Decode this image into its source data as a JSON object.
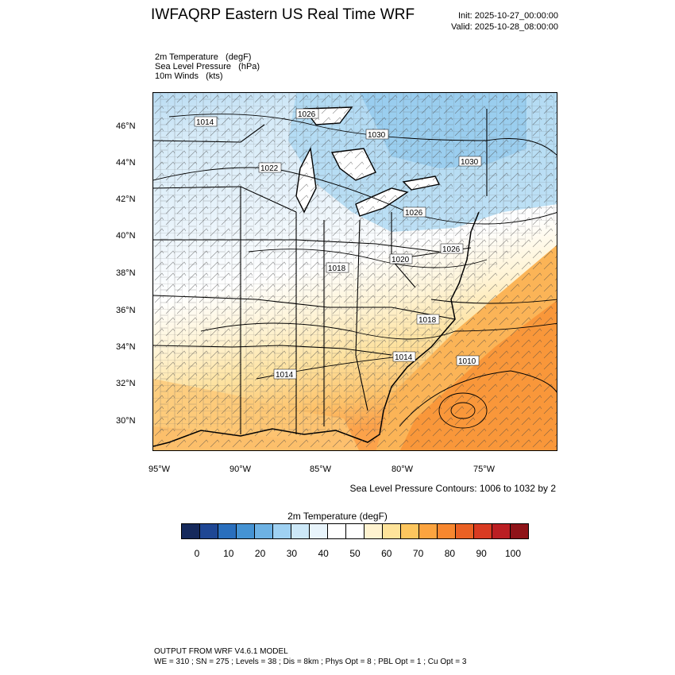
{
  "title": "IWFAQRP Eastern US Real Time WRF",
  "init": "Init: 2025-10-27_00:00:00",
  "valid": "Valid: 2025-10-28_08:00:00",
  "fields": [
    "2m Temperature   (degF)",
    "Sea Level Pressure   (hPa)",
    "10m Winds   (kts)"
  ],
  "lat_labels": [
    "46°N",
    "44°N",
    "42°N",
    "40°N",
    "38°N",
    "36°N",
    "34°N",
    "32°N",
    "30°N"
  ],
  "lon_labels": [
    "95°W",
    "90°W",
    "85°W",
    "80°W",
    "75°W"
  ],
  "pressure_labels": [
    "1014",
    "1026",
    "1030",
    "1022",
    "1030",
    "1026",
    "1026",
    "1020",
    "1018",
    "1018",
    "1014",
    "1010",
    "1014"
  ],
  "contour_note": "Sea Level Pressure Contours: 1006 to 1032 by 2",
  "colorbar": {
    "title": "2m Temperature  (degF)",
    "labels": [
      "0",
      "10",
      "20",
      "30",
      "40",
      "50",
      "60",
      "70",
      "80",
      "90",
      "100"
    ],
    "colors": [
      "#162a5c",
      "#1f4794",
      "#2a6fbd",
      "#4593d3",
      "#6db2e4",
      "#9fd1f2",
      "#cce8f8",
      "#e8f4fb",
      "#ffffff",
      "#ffffff",
      "#fff3d0",
      "#fee39a",
      "#fdc65e",
      "#fca43f",
      "#f7872f",
      "#ea6124",
      "#d93b22",
      "#bb1f23",
      "#8f1419"
    ]
  },
  "footer": {
    "line1": "OUTPUT FROM WRF V4.6.1 MODEL",
    "line2": "WE = 310 ; SN = 275 ; Levels = 38 ; Dis = 8km ; Phys Opt = 8 ; PBL Opt = 1 ; Cu Opt = 3"
  }
}
